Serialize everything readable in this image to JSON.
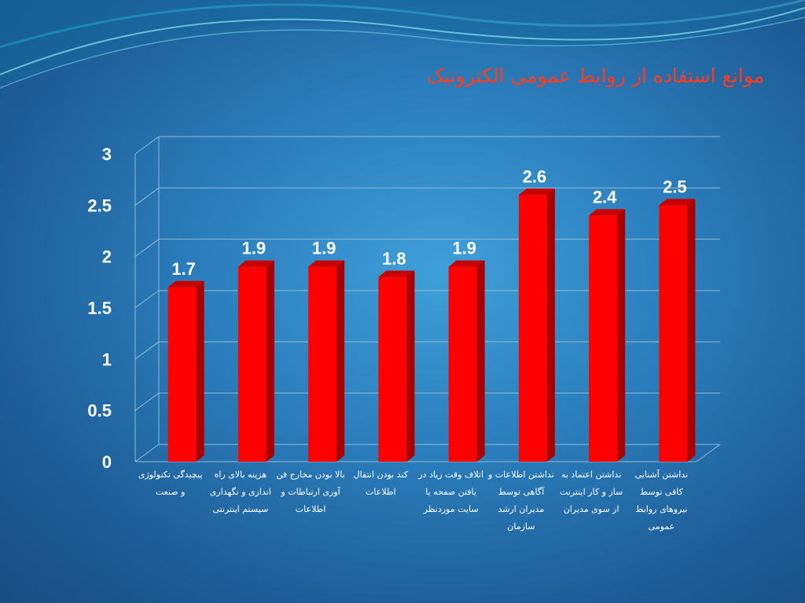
{
  "slide": {
    "title": "موانع استفاده از روابط عمومی الکترونیک"
  },
  "colors": {
    "bar_front": "#ff0000",
    "bar_side": "#a80000",
    "bar_top": "#c80000",
    "grid": "#8fbcd9",
    "text": "#ffffff",
    "title": "#ff3b1f"
  },
  "chart_data": {
    "type": "bar",
    "title": "موانع استفاده از روابط عمومی الکترونیک",
    "categories": [
      "پیچیدگی تکنولوژی و صنعت",
      "هزینه بالای راه اندازی و نگهداری سیستم اینترنتی",
      "بالا بودن مخارج فن آوری ارتباطات و اطلاعات",
      "کند بودن انتقال اطلاعات",
      "اتلاف وقت زیاد در یافتن صفحه یا سایت موردنظر",
      "نداشتن اطلاعات و آگاهی توسط مدیران ارشد سازمان",
      "نداشتن اعتماد به ساز و کار اینترنت از سوی مدیران",
      "نداشتن آشنایی کافی توسط نیروهای روابط عمومی"
    ],
    "values": [
      1.7,
      1.9,
      1.9,
      1.8,
      1.9,
      2.6,
      2.4,
      2.5
    ],
    "data_labels": [
      "1.7",
      "1.9",
      "1.9",
      "1.8",
      "1.9",
      "2.6",
      "2.4",
      "2.5"
    ],
    "y_ticks": [
      "0",
      "0.5",
      "1",
      "1.5",
      "2",
      "2.5",
      "3"
    ],
    "ylim": [
      0,
      3
    ],
    "grid": true,
    "legend": "none",
    "xlabel": "",
    "ylabel": ""
  }
}
